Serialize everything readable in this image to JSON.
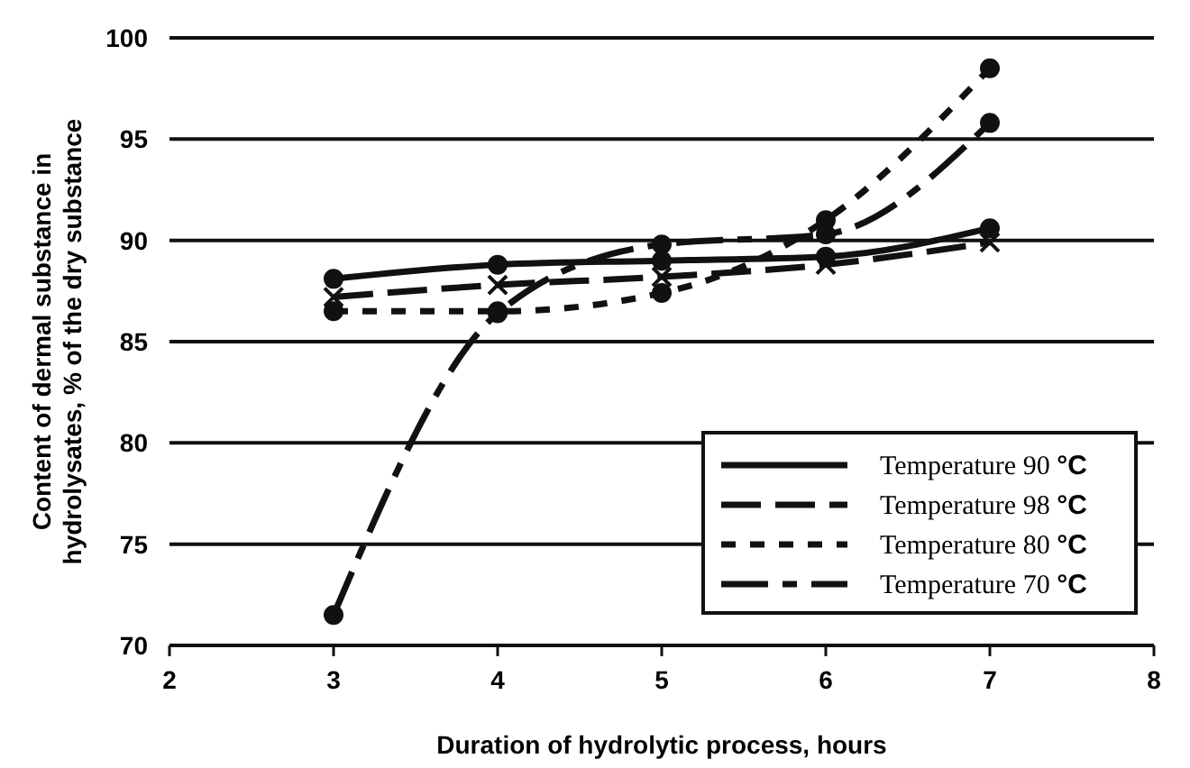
{
  "chart_data": {
    "type": "line",
    "xlabel": "Duration of hydrolytic process, hours",
    "ylabel": "Content of dermal substance in hydrolysates, % of the dry substance",
    "x": [
      3,
      4,
      5,
      6,
      7
    ],
    "xlim": [
      2,
      8
    ],
    "xticks": [
      2,
      3,
      4,
      5,
      6,
      7,
      8
    ],
    "ylim": [
      70,
      100
    ],
    "yticks": [
      70,
      75,
      80,
      85,
      90,
      95,
      100
    ],
    "grid": "y",
    "legend": "bottom right",
    "series": [
      {
        "name": "Temperature 90 °C",
        "color": "#111111",
        "line_style": "solid",
        "marker": "circle",
        "values": [
          88.1,
          88.8,
          89.0,
          89.2,
          90.6
        ]
      },
      {
        "name": "Temperature 98 °C",
        "color": "#111111",
        "line_style": "dashed",
        "marker": "cross",
        "values": [
          87.2,
          87.8,
          88.2,
          88.8,
          89.9
        ]
      },
      {
        "name": "Temperature 80 °C",
        "color": "#111111",
        "line_style": "dotted",
        "marker": "circle",
        "values": [
          86.5,
          86.5,
          87.4,
          91.0,
          98.5
        ]
      },
      {
        "name": "Temperature 70 °C",
        "color": "#111111",
        "line_style": "dashdot",
        "marker": "circle",
        "values": [
          71.5,
          86.4,
          89.8,
          90.3,
          95.8
        ]
      }
    ]
  }
}
